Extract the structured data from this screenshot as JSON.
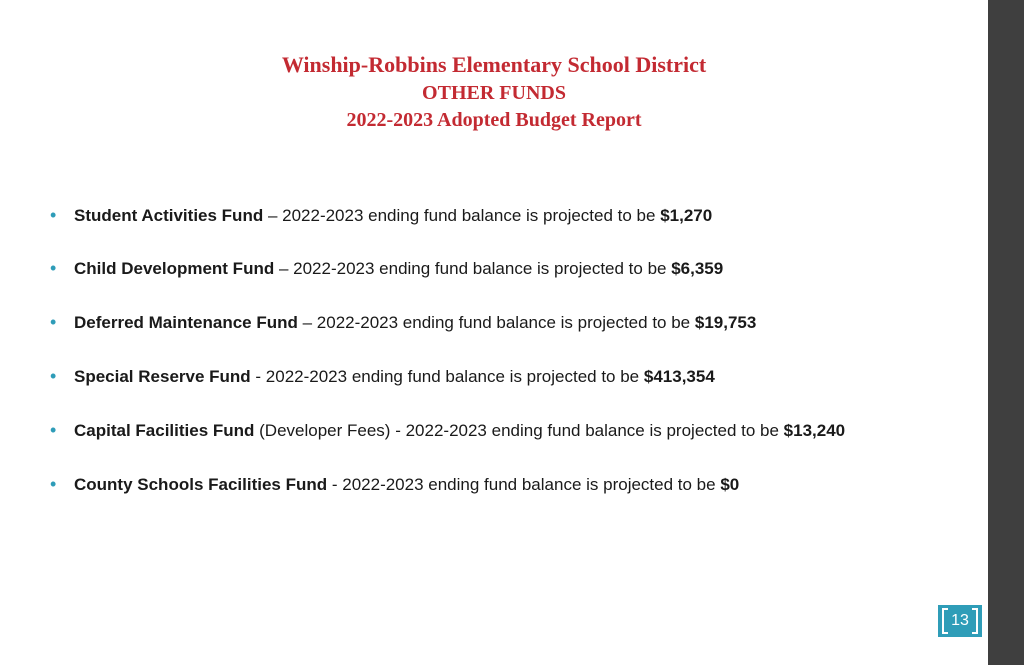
{
  "colors": {
    "title": "#c32a32",
    "bullet": "#2e9cb8",
    "text": "#1a1a1a",
    "right_band": "#3f3f3f",
    "page_box_bg": "#2f9db8",
    "page_box_fg": "#ffffff",
    "background": "#ffffff"
  },
  "title": {
    "line1": "Winship-Robbins Elementary School District",
    "line2": "OTHER FUNDS",
    "line3": "2022-2023 Adopted  Budget  Report"
  },
  "funds": [
    {
      "name": "Student Activities Fund",
      "paren": "",
      "sep": " – ",
      "desc": "2022-2023 ending fund balance is projected to be ",
      "amount": "$1,270"
    },
    {
      "name": "Child Development Fund",
      "paren": "",
      "sep": " – ",
      "desc": "2022-2023 ending fund balance is projected to be ",
      "amount": "$6,359"
    },
    {
      "name": "Deferred Maintenance Fund",
      "paren": "",
      "sep": " – ",
      "desc": "2022-2023 ending fund balance is projected to be ",
      "amount": "$19,753"
    },
    {
      "name": "Special Reserve Fund",
      "paren": "",
      "sep": " - ",
      "desc": "2022-2023 ending fund balance is projected to be ",
      "amount": "$413,354"
    },
    {
      "name": "Capital Facilities Fund",
      "paren": " (Developer Fees)",
      "sep": " - ",
      "desc": "2022-2023 ending fund balance is projected to be ",
      "amount": "$13,240"
    },
    {
      "name": "County Schools Facilities Fund",
      "paren": "",
      "sep": " - ",
      "desc": "2022-2023 ending fund balance is projected to be ",
      "amount": "$0"
    }
  ],
  "page_number": "13"
}
